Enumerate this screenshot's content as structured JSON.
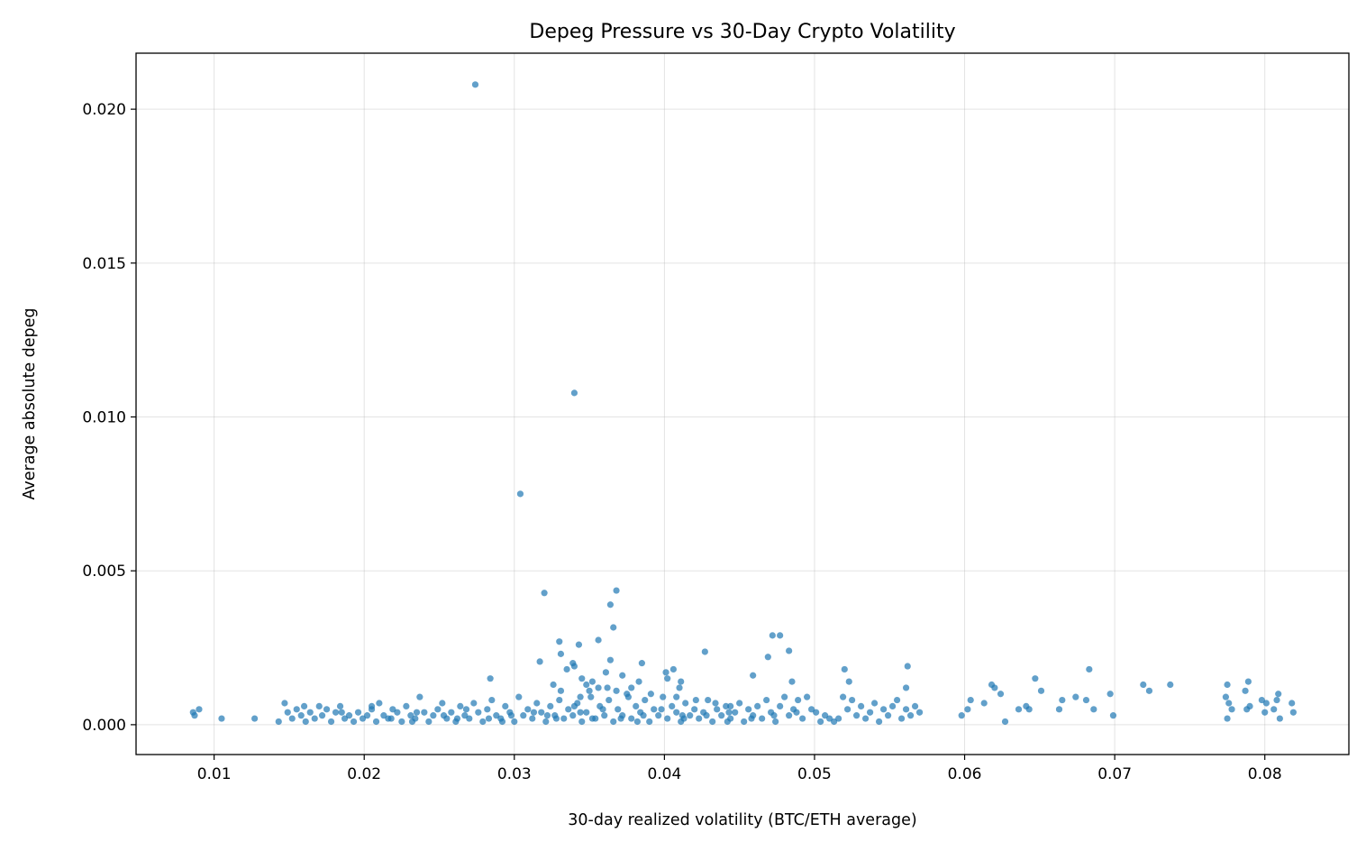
{
  "chart_data": {
    "type": "scatter",
    "title": "Depeg Pressure vs 30-Day Crypto Volatility",
    "xlabel": "30-day realized volatility (BTC/ETH average)",
    "ylabel": "Average absolute depeg",
    "xlim": [
      0.0048,
      0.0856
    ],
    "ylim": [
      -0.00097,
      0.02182
    ],
    "xticks": [
      0.01,
      0.02,
      0.03,
      0.04,
      0.05,
      0.06,
      0.07,
      0.08
    ],
    "xtick_labels": [
      "0.01",
      "0.02",
      "0.03",
      "0.04",
      "0.05",
      "0.06",
      "0.07",
      "0.08"
    ],
    "yticks": [
      0.0,
      0.005,
      0.01,
      0.015,
      0.02
    ],
    "ytick_labels": [
      "0.000",
      "0.005",
      "0.010",
      "0.015",
      "0.020"
    ],
    "grid": true,
    "marker_color": "#1f77b4",
    "marker_alpha": 0.7,
    "points": [
      [
        0.0274,
        0.0208
      ],
      [
        0.034,
        0.01078
      ],
      [
        0.0304,
        0.0075
      ],
      [
        0.032,
        0.00428
      ],
      [
        0.0368,
        0.00436
      ],
      [
        0.0364,
        0.0039
      ],
      [
        0.0366,
        0.00316
      ],
      [
        0.033,
        0.0027
      ],
      [
        0.0356,
        0.00275
      ],
      [
        0.0343,
        0.0026
      ],
      [
        0.0472,
        0.0029
      ],
      [
        0.0477,
        0.0029
      ],
      [
        0.0483,
        0.0024
      ],
      [
        0.0427,
        0.00237
      ],
      [
        0.0331,
        0.0023
      ],
      [
        0.0317,
        0.00205
      ],
      [
        0.0339,
        0.002
      ],
      [
        0.034,
        0.0019
      ],
      [
        0.0385,
        0.002
      ],
      [
        0.0364,
        0.0021
      ],
      [
        0.0562,
        0.0019
      ],
      [
        0.0683,
        0.0018
      ],
      [
        0.0284,
        0.0015
      ],
      [
        0.052,
        0.0018
      ],
      [
        0.0523,
        0.0014
      ],
      [
        0.0469,
        0.0022
      ],
      [
        0.0459,
        0.0016
      ],
      [
        0.0647,
        0.0015
      ],
      [
        0.0719,
        0.0013
      ],
      [
        0.0737,
        0.0013
      ],
      [
        0.0775,
        0.0013
      ],
      [
        0.0789,
        0.0014
      ],
      [
        0.0618,
        0.0013
      ],
      [
        0.0697,
        0.001
      ],
      [
        0.0361,
        0.0017
      ],
      [
        0.0335,
        0.0018
      ],
      [
        0.0345,
        0.0015
      ],
      [
        0.0352,
        0.0014
      ],
      [
        0.0372,
        0.0016
      ],
      [
        0.0378,
        0.0012
      ],
      [
        0.0401,
        0.0017
      ],
      [
        0.0406,
        0.0018
      ],
      [
        0.0411,
        0.0014
      ],
      [
        0.0383,
        0.0014
      ],
      [
        0.0326,
        0.0013
      ],
      [
        0.0331,
        0.0011
      ],
      [
        0.0348,
        0.0013
      ],
      [
        0.0356,
        0.0012
      ],
      [
        0.0402,
        0.0015
      ],
      [
        0.0485,
        0.0014
      ],
      [
        0.0561,
        0.0012
      ],
      [
        0.062,
        0.0012
      ],
      [
        0.0651,
        0.0011
      ],
      [
        0.0723,
        0.0011
      ],
      [
        0.0787,
        0.0011
      ],
      [
        0.0809,
        0.001
      ],
      [
        0.0674,
        0.0009
      ],
      [
        0.0604,
        0.0008
      ],
      [
        0.0641,
        0.0006
      ],
      [
        0.0665,
        0.0008
      ],
      [
        0.0681,
        0.0008
      ],
      [
        0.0686,
        0.0005
      ],
      [
        0.0699,
        0.0003
      ],
      [
        0.0598,
        0.0003
      ],
      [
        0.0602,
        0.0005
      ],
      [
        0.0613,
        0.0007
      ],
      [
        0.0624,
        0.001
      ],
      [
        0.0627,
        0.0001
      ],
      [
        0.0636,
        0.0005
      ],
      [
        0.0643,
        0.0005
      ],
      [
        0.0663,
        0.0005
      ],
      [
        0.0774,
        0.0009
      ],
      [
        0.0776,
        0.0007
      ],
      [
        0.0778,
        0.0005
      ],
      [
        0.0775,
        0.0002
      ],
      [
        0.079,
        0.0006
      ],
      [
        0.0788,
        0.0005
      ],
      [
        0.0798,
        0.0008
      ],
      [
        0.0801,
        0.0007
      ],
      [
        0.08,
        0.0004
      ],
      [
        0.0806,
        0.0005
      ],
      [
        0.0808,
        0.0008
      ],
      [
        0.081,
        0.0002
      ],
      [
        0.0818,
        0.0007
      ],
      [
        0.0819,
        0.0004
      ],
      [
        0.0086,
        0.0004
      ],
      [
        0.0087,
        0.0003
      ],
      [
        0.009,
        0.0005
      ],
      [
        0.0105,
        0.0002
      ],
      [
        0.0127,
        0.0002
      ],
      [
        0.0143,
        0.0001
      ],
      [
        0.0147,
        0.0007
      ],
      [
        0.0149,
        0.0004
      ],
      [
        0.0152,
        0.0002
      ],
      [
        0.0155,
        0.0005
      ],
      [
        0.0158,
        0.0003
      ],
      [
        0.0161,
        0.0001
      ],
      [
        0.0164,
        0.0004
      ],
      [
        0.0167,
        0.0002
      ],
      [
        0.017,
        0.0006
      ],
      [
        0.0172,
        0.0003
      ],
      [
        0.0175,
        0.0005
      ],
      [
        0.0178,
        0.0001
      ],
      [
        0.0181,
        0.0004
      ],
      [
        0.0184,
        0.0006
      ],
      [
        0.0187,
        0.0002
      ],
      [
        0.019,
        0.0003
      ],
      [
        0.0193,
        0.0001
      ],
      [
        0.0196,
        0.0004
      ],
      [
        0.0199,
        0.0002
      ],
      [
        0.0202,
        0.0003
      ],
      [
        0.0205,
        0.0005
      ],
      [
        0.0208,
        0.0001
      ],
      [
        0.021,
        0.0007
      ],
      [
        0.0213,
        0.0003
      ],
      [
        0.0216,
        0.0002
      ],
      [
        0.0219,
        0.0005
      ],
      [
        0.0222,
        0.0004
      ],
      [
        0.0225,
        0.0001
      ],
      [
        0.0228,
        0.0006
      ],
      [
        0.0231,
        0.0003
      ],
      [
        0.0234,
        0.0002
      ],
      [
        0.0237,
        0.0009
      ],
      [
        0.024,
        0.0004
      ],
      [
        0.0243,
        0.0001
      ],
      [
        0.0246,
        0.0003
      ],
      [
        0.0249,
        0.0005
      ],
      [
        0.0252,
        0.0007
      ],
      [
        0.0255,
        0.0002
      ],
      [
        0.0258,
        0.0004
      ],
      [
        0.0261,
        0.0001
      ],
      [
        0.0264,
        0.0006
      ],
      [
        0.0267,
        0.0003
      ],
      [
        0.027,
        0.0002
      ],
      [
        0.0273,
        0.0007
      ],
      [
        0.0276,
        0.0004
      ],
      [
        0.0279,
        0.0001
      ],
      [
        0.0282,
        0.0005
      ],
      [
        0.0285,
        0.0008
      ],
      [
        0.0288,
        0.0003
      ],
      [
        0.0291,
        0.0002
      ],
      [
        0.0294,
        0.0006
      ],
      [
        0.0297,
        0.0004
      ],
      [
        0.03,
        0.0001
      ],
      [
        0.0303,
        0.0009
      ],
      [
        0.0306,
        0.0003
      ],
      [
        0.0309,
        0.0005
      ],
      [
        0.0312,
        0.0002
      ],
      [
        0.0315,
        0.0007
      ],
      [
        0.0318,
        0.0004
      ],
      [
        0.0321,
        0.0001
      ],
      [
        0.0324,
        0.0006
      ],
      [
        0.0327,
        0.0003
      ],
      [
        0.033,
        0.0008
      ],
      [
        0.0333,
        0.0002
      ],
      [
        0.0336,
        0.0005
      ],
      [
        0.0339,
        0.0003
      ],
      [
        0.0342,
        0.0007
      ],
      [
        0.0345,
        0.0001
      ],
      [
        0.0348,
        0.0004
      ],
      [
        0.0351,
        0.0009
      ],
      [
        0.0354,
        0.0002
      ],
      [
        0.0357,
        0.0006
      ],
      [
        0.036,
        0.0003
      ],
      [
        0.0363,
        0.0008
      ],
      [
        0.0366,
        0.0001
      ],
      [
        0.0369,
        0.0005
      ],
      [
        0.0372,
        0.0003
      ],
      [
        0.0375,
        0.001
      ],
      [
        0.0378,
        0.0002
      ],
      [
        0.0381,
        0.0006
      ],
      [
        0.0384,
        0.0004
      ],
      [
        0.0387,
        0.0008
      ],
      [
        0.039,
        0.0001
      ],
      [
        0.0393,
        0.0005
      ],
      [
        0.0396,
        0.0003
      ],
      [
        0.0399,
        0.0009
      ],
      [
        0.0402,
        0.0002
      ],
      [
        0.0405,
        0.0006
      ],
      [
        0.0408,
        0.0004
      ],
      [
        0.0411,
        0.0001
      ],
      [
        0.0414,
        0.0007
      ],
      [
        0.0417,
        0.0003
      ],
      [
        0.042,
        0.0005
      ],
      [
        0.0423,
        0.0002
      ],
      [
        0.0426,
        0.0004
      ],
      [
        0.0429,
        0.0008
      ],
      [
        0.0432,
        0.0001
      ],
      [
        0.0435,
        0.0005
      ],
      [
        0.0438,
        0.0003
      ],
      [
        0.0441,
        0.0006
      ],
      [
        0.0444,
        0.0002
      ],
      [
        0.0447,
        0.0004
      ],
      [
        0.045,
        0.0007
      ],
      [
        0.0453,
        0.0001
      ],
      [
        0.0456,
        0.0005
      ],
      [
        0.0459,
        0.0003
      ],
      [
        0.0462,
        0.0006
      ],
      [
        0.0465,
        0.0002
      ],
      [
        0.0468,
        0.0008
      ],
      [
        0.0471,
        0.0004
      ],
      [
        0.0474,
        0.0001
      ],
      [
        0.0477,
        0.0006
      ],
      [
        0.048,
        0.0009
      ],
      [
        0.0483,
        0.0003
      ],
      [
        0.0486,
        0.0005
      ],
      [
        0.0489,
        0.0008
      ],
      [
        0.0492,
        0.0002
      ],
      [
        0.0495,
        0.0009
      ],
      [
        0.0498,
        0.0005
      ],
      [
        0.0501,
        0.0004
      ],
      [
        0.0504,
        0.0001
      ],
      [
        0.0507,
        0.0003
      ],
      [
        0.051,
        0.0002
      ],
      [
        0.0513,
        0.0001
      ],
      [
        0.0516,
        0.0002
      ],
      [
        0.0519,
        0.0009
      ],
      [
        0.0522,
        0.0005
      ],
      [
        0.0525,
        0.0008
      ],
      [
        0.0528,
        0.0003
      ],
      [
        0.0531,
        0.0006
      ],
      [
        0.0534,
        0.0002
      ],
      [
        0.0537,
        0.0004
      ],
      [
        0.054,
        0.0007
      ],
      [
        0.0543,
        0.0001
      ],
      [
        0.0546,
        0.0005
      ],
      [
        0.0549,
        0.0003
      ],
      [
        0.0552,
        0.0006
      ],
      [
        0.0555,
        0.0008
      ],
      [
        0.0558,
        0.0002
      ],
      [
        0.0561,
        0.0005
      ],
      [
        0.0564,
        0.0003
      ],
      [
        0.0567,
        0.0006
      ],
      [
        0.057,
        0.0004
      ],
      [
        0.016,
        0.0006
      ],
      [
        0.0185,
        0.0004
      ],
      [
        0.0205,
        0.0006
      ],
      [
        0.0218,
        0.0002
      ],
      [
        0.0235,
        0.0004
      ],
      [
        0.0253,
        0.0003
      ],
      [
        0.0268,
        0.0005
      ],
      [
        0.0283,
        0.0002
      ],
      [
        0.0298,
        0.0003
      ],
      [
        0.0313,
        0.0004
      ],
      [
        0.0328,
        0.0002
      ],
      [
        0.0344,
        0.0004
      ],
      [
        0.0359,
        0.0005
      ],
      [
        0.0371,
        0.0002
      ],
      [
        0.0386,
        0.0003
      ],
      [
        0.0398,
        0.0005
      ],
      [
        0.0413,
        0.0002
      ],
      [
        0.0428,
        0.0003
      ],
      [
        0.0443,
        0.0004
      ],
      [
        0.0458,
        0.0002
      ],
      [
        0.0473,
        0.0003
      ],
      [
        0.0488,
        0.0004
      ],
      [
        0.0232,
        0.0001
      ],
      [
        0.0262,
        0.0002
      ],
      [
        0.0292,
        0.0001
      ],
      [
        0.0322,
        0.0003
      ],
      [
        0.0352,
        0.0002
      ],
      [
        0.0382,
        0.0001
      ],
      [
        0.0412,
        0.0003
      ],
      [
        0.0442,
        0.0001
      ],
      [
        0.0362,
        0.0012
      ],
      [
        0.0368,
        0.0011
      ],
      [
        0.0344,
        0.0009
      ],
      [
        0.034,
        0.0006
      ],
      [
        0.035,
        0.0011
      ],
      [
        0.0376,
        0.0009
      ],
      [
        0.0391,
        0.001
      ],
      [
        0.041,
        0.0012
      ],
      [
        0.0421,
        0.0008
      ],
      [
        0.0444,
        0.0006
      ],
      [
        0.0408,
        0.0009
      ],
      [
        0.0434,
        0.0007
      ]
    ]
  }
}
